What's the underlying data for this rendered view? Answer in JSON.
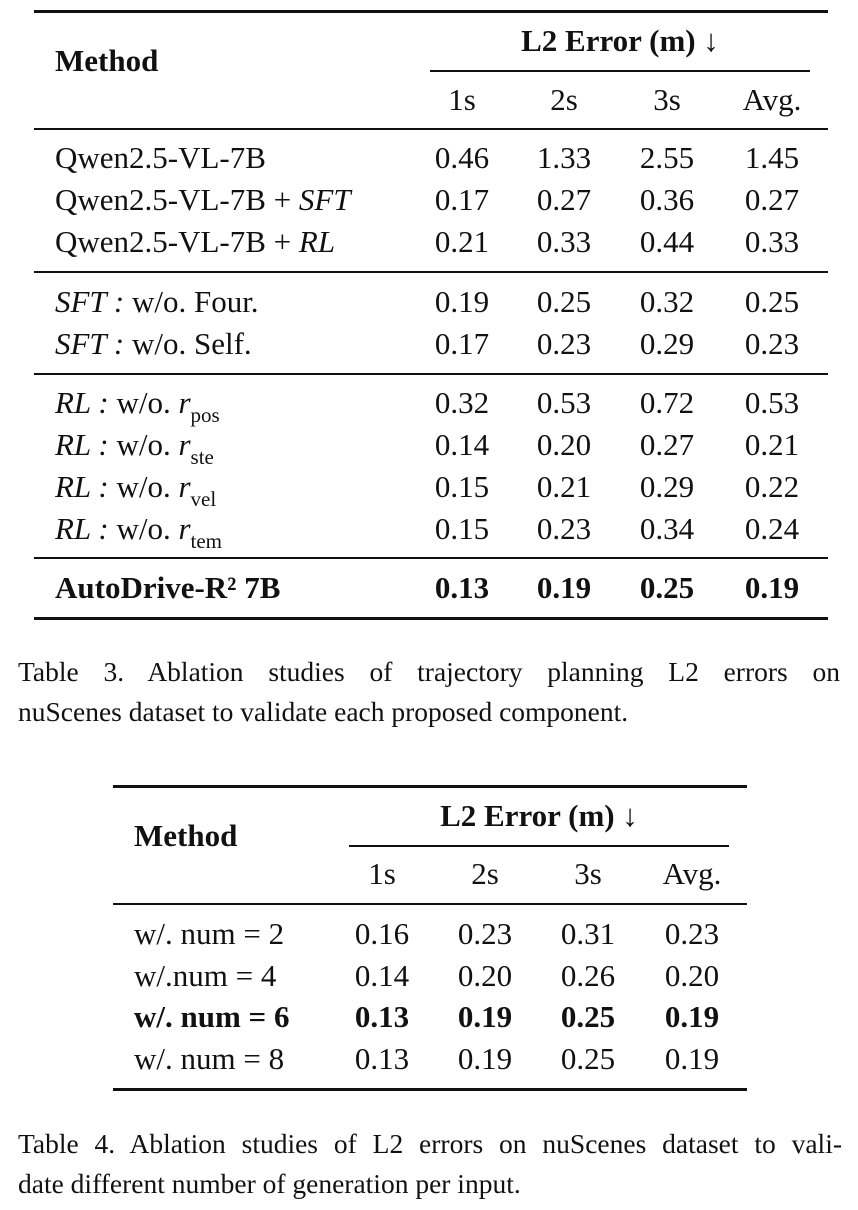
{
  "table3": {
    "header": {
      "method": "Method",
      "group": "L2 Error (m) ↓",
      "cols": [
        "1s",
        "2s",
        "3s",
        "Avg."
      ]
    },
    "groups": [
      [
        {
          "label": "Qwen2.5-VL-7B",
          "values": [
            "0.46",
            "1.33",
            "2.55",
            "1.45"
          ]
        },
        {
          "label": "Qwen2.5-VL-7B + ",
          "label_it": "SFT",
          "values": [
            "0.17",
            "0.27",
            "0.36",
            "0.27"
          ]
        },
        {
          "label": "Qwen2.5-VL-7B + ",
          "label_it": "RL",
          "values": [
            "0.21",
            "0.33",
            "0.44",
            "0.33"
          ]
        }
      ],
      [
        {
          "label_it": "SFT :",
          "label": " w/o. Four.",
          "values": [
            "0.19",
            "0.25",
            "0.32",
            "0.25"
          ]
        },
        {
          "label_it": "SFT :",
          "label": " w/o. Self.",
          "values": [
            "0.17",
            "0.23",
            "0.29",
            "0.23"
          ]
        }
      ],
      [
        {
          "label_it": "RL :",
          "label": " w/o. ",
          "var": "r",
          "sub": "pos",
          "values": [
            "0.32",
            "0.53",
            "0.72",
            "0.53"
          ]
        },
        {
          "label_it": "RL :",
          "label": " w/o. ",
          "var": "r",
          "sub": "ste",
          "values": [
            "0.14",
            "0.20",
            "0.27",
            "0.21"
          ]
        },
        {
          "label_it": "RL :",
          "label": " w/o. ",
          "var": "r",
          "sub": "vel",
          "values": [
            "0.15",
            "0.21",
            "0.29",
            "0.22"
          ]
        },
        {
          "label_it": "RL :",
          "label": " w/o. ",
          "var": "r",
          "sub": "tem",
          "values": [
            "0.15",
            "0.23",
            "0.34",
            "0.24"
          ]
        }
      ]
    ],
    "final": {
      "label": "AutoDrive-R² 7B",
      "values": [
        "0.13",
        "0.19",
        "0.25",
        "0.19"
      ]
    },
    "caption": {
      "line1": "Table 3.   Ablation studies of trajectory planning L2 errors on",
      "line2": "nuScenes dataset to validate each proposed component."
    }
  },
  "table4": {
    "header": {
      "method": "Method",
      "group": "L2 Error (m) ↓",
      "cols": [
        "1s",
        "2s",
        "3s",
        "Avg."
      ]
    },
    "rows": [
      {
        "label": "w/. num = 2",
        "values": [
          "0.16",
          "0.23",
          "0.31",
          "0.23"
        ],
        "bold": false
      },
      {
        "label": "w/.num = 4",
        "values": [
          "0.14",
          "0.20",
          "0.26",
          "0.20"
        ],
        "bold": false
      },
      {
        "label": "w/. num = 6",
        "values": [
          "0.13",
          "0.19",
          "0.25",
          "0.19"
        ],
        "bold": true
      },
      {
        "label": "w/. num = 8",
        "values": [
          "0.13",
          "0.19",
          "0.25",
          "0.19"
        ],
        "bold": false
      }
    ],
    "caption": {
      "line1": "Table 4. Ablation studies of L2 errors on nuScenes dataset to vali-",
      "line2": "date different number of generation per input."
    }
  }
}
